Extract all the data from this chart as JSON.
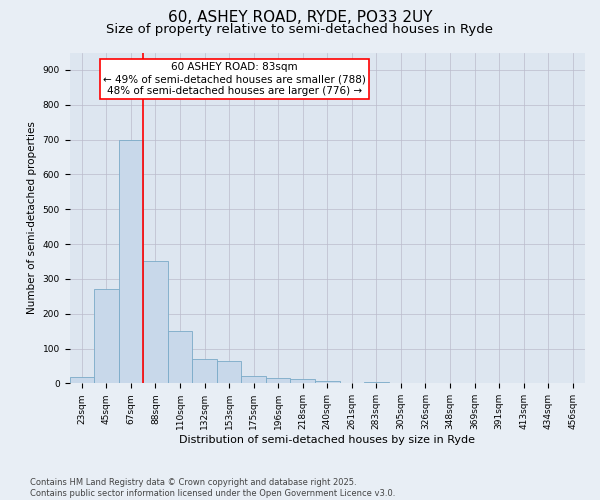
{
  "title1": "60, ASHEY ROAD, RYDE, PO33 2UY",
  "title2": "Size of property relative to semi-detached houses in Ryde",
  "xlabel": "Distribution of semi-detached houses by size in Ryde",
  "ylabel": "Number of semi-detached properties",
  "categories": [
    "23sqm",
    "45sqm",
    "67sqm",
    "88sqm",
    "110sqm",
    "132sqm",
    "153sqm",
    "175sqm",
    "196sqm",
    "218sqm",
    "240sqm",
    "261sqm",
    "283sqm",
    "305sqm",
    "326sqm",
    "348sqm",
    "369sqm",
    "391sqm",
    "413sqm",
    "434sqm",
    "456sqm"
  ],
  "values": [
    18,
    270,
    700,
    350,
    150,
    70,
    65,
    20,
    15,
    12,
    8,
    0,
    5,
    0,
    0,
    0,
    0,
    0,
    0,
    0,
    0
  ],
  "bar_color": "#c8d8ea",
  "bar_edge_color": "#7aaac8",
  "bar_linewidth": 0.6,
  "grid_color": "#bbbbcc",
  "background_color": "#e8eef5",
  "plot_bg_color": "#dde6f0",
  "vline_x": 3,
  "vline_color": "red",
  "vline_linewidth": 1.2,
  "annotation_title": "60 ASHEY ROAD: 83sqm",
  "annotation_line1": "← 49% of semi-detached houses are smaller (788)",
  "annotation_line2": "48% of semi-detached houses are larger (776) →",
  "annotation_box_color": "white",
  "annotation_box_edge": "red",
  "annotation_fontsize": 7.5,
  "title_fontsize1": 11,
  "title_fontsize2": 9.5,
  "xlabel_fontsize": 8,
  "ylabel_fontsize": 7.5,
  "tick_fontsize": 6.5,
  "footer1": "Contains HM Land Registry data © Crown copyright and database right 2025.",
  "footer2": "Contains public sector information licensed under the Open Government Licence v3.0.",
  "footer_fontsize": 6,
  "ylim": [
    0,
    950
  ],
  "yticks": [
    0,
    100,
    200,
    300,
    400,
    500,
    600,
    700,
    800,
    900
  ]
}
